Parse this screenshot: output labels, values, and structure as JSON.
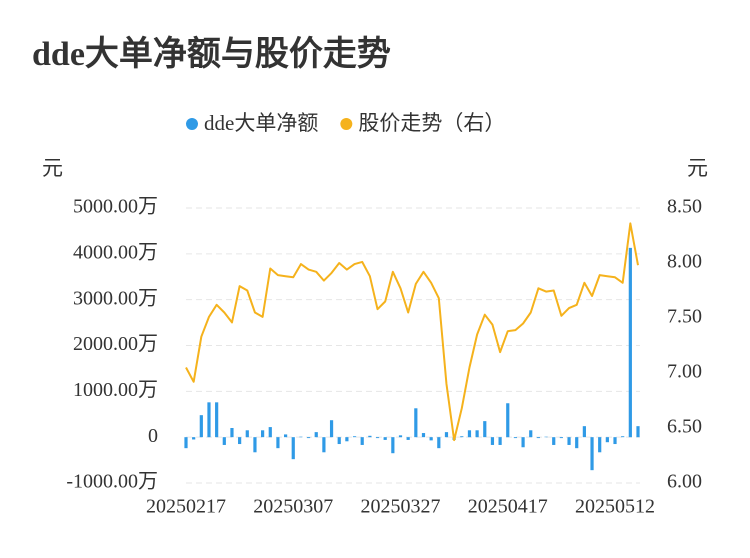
{
  "chart_data": {
    "type": "bar-line",
    "title": "dde大单净额与股价走势",
    "y_axis_label": "元",
    "y2_axis_label": "元",
    "categories": [
      "20250217",
      null,
      null,
      null,
      null,
      null,
      null,
      null,
      null,
      null,
      null,
      null,
      null,
      null,
      "20250307",
      null,
      null,
      null,
      null,
      null,
      null,
      null,
      null,
      null,
      null,
      null,
      null,
      null,
      "20250327",
      null,
      null,
      null,
      null,
      null,
      null,
      null,
      null,
      null,
      null,
      null,
      null,
      null,
      "20250417",
      null,
      null,
      null,
      null,
      null,
      null,
      null,
      null,
      null,
      null,
      null,
      null,
      null,
      "20250512",
      null,
      null,
      null
    ],
    "series": [
      {
        "name": "dde大单净额",
        "type": "bar",
        "color": "#2f9ae6",
        "values": [
          -240,
          -50,
          480,
          760,
          760,
          -170,
          200,
          -150,
          150,
          -330,
          150,
          220,
          -240,
          60,
          -480,
          10,
          -20,
          110,
          -330,
          370,
          -150,
          -90,
          20,
          -170,
          30,
          -20,
          -60,
          -350,
          40,
          -60,
          630,
          90,
          -70,
          -240,
          110,
          -60,
          20,
          150,
          150,
          350,
          -170,
          -170,
          740,
          -20,
          -220,
          150,
          -20,
          10,
          -170,
          -20,
          -170,
          -240,
          240,
          -720,
          -330,
          -110,
          -150,
          20,
          4130,
          240
        ]
      },
      {
        "name": "股价走势（右）",
        "type": "line",
        "axis": "y2",
        "color": "#f5b21c",
        "values": [
          7.05,
          6.92,
          7.33,
          7.51,
          7.62,
          7.55,
          7.46,
          7.79,
          7.75,
          7.55,
          7.51,
          7.95,
          7.89,
          7.88,
          7.87,
          7.99,
          7.94,
          7.92,
          7.84,
          7.91,
          8.0,
          7.94,
          7.99,
          8.01,
          7.88,
          7.58,
          7.65,
          7.92,
          7.77,
          7.55,
          7.81,
          7.92,
          7.82,
          7.68,
          6.9,
          6.39,
          6.68,
          7.05,
          7.35,
          7.53,
          7.44,
          7.19,
          7.38,
          7.39,
          7.45,
          7.55,
          7.77,
          7.74,
          7.75,
          7.52,
          7.59,
          7.62,
          7.82,
          7.7,
          7.89,
          7.88,
          7.87,
          7.82,
          8.36,
          7.98
        ]
      }
    ],
    "ylim": [
      -1000,
      5000
    ],
    "yticks": [
      {
        "value": -1000,
        "label": "-1000.00万"
      },
      0,
      {
        "value": 1000,
        "label": "1000.00万"
      },
      {
        "value": 2000,
        "label": "2000.00万"
      },
      {
        "value": 3000,
        "label": "3000.00万"
      },
      {
        "value": 4000,
        "label": "4000.00万"
      },
      {
        "value": 5000,
        "label": "5000.00万"
      }
    ],
    "y2lim": [
      6.0,
      8.5
    ],
    "y2ticks": [
      {
        "value": 6.0,
        "label": "6.00"
      },
      {
        "value": 6.5,
        "label": "6.50"
      },
      {
        "value": 7.0,
        "label": "7.00"
      },
      {
        "value": 7.5,
        "label": "7.50"
      },
      {
        "value": 8.0,
        "label": "8.00"
      },
      {
        "value": 8.5,
        "label": "8.50"
      }
    ],
    "grid": true
  }
}
